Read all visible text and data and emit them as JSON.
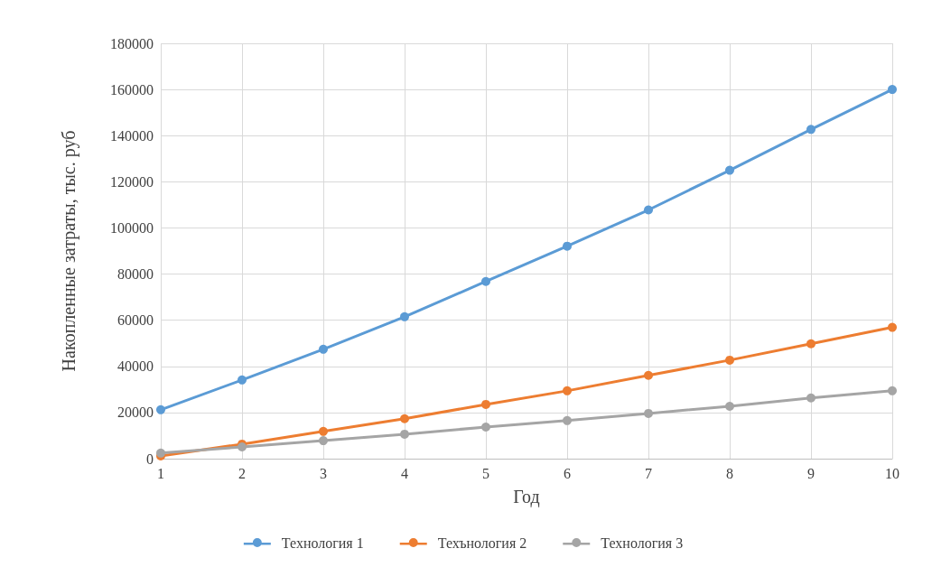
{
  "chart_data": {
    "type": "line",
    "xlabel": "Год",
    "ylabel": "Накопленные затраты, тыс. руб",
    "x": [
      1,
      2,
      3,
      4,
      5,
      6,
      7,
      8,
      9,
      10
    ],
    "xlim": [
      1,
      10
    ],
    "xticks": [
      1,
      2,
      3,
      4,
      5,
      6,
      7,
      8,
      9,
      10
    ],
    "ylim": [
      0,
      180000
    ],
    "yticks": [
      0,
      20000,
      40000,
      60000,
      80000,
      100000,
      120000,
      140000,
      160000,
      180000
    ],
    "grid": true,
    "legend": "bottom",
    "marker": "circle",
    "line_style": "solid",
    "series": [
      {
        "name": "Технология 1",
        "color": "#5b9bd5",
        "values": [
          21200,
          34100,
          47400,
          61500,
          76800,
          92100,
          107800,
          125000,
          142700,
          160000
        ]
      },
      {
        "name": "Техънология 2",
        "color": "#ed7d31",
        "values": [
          1200,
          6300,
          11800,
          17300,
          23500,
          29400,
          36100,
          42700,
          49800,
          56900
        ]
      },
      {
        "name": "Технология 3",
        "color": "#a5a5a5",
        "values": [
          2400,
          5100,
          7800,
          10600,
          13700,
          16500,
          19600,
          22700,
          26300,
          29400
        ]
      }
    ]
  }
}
